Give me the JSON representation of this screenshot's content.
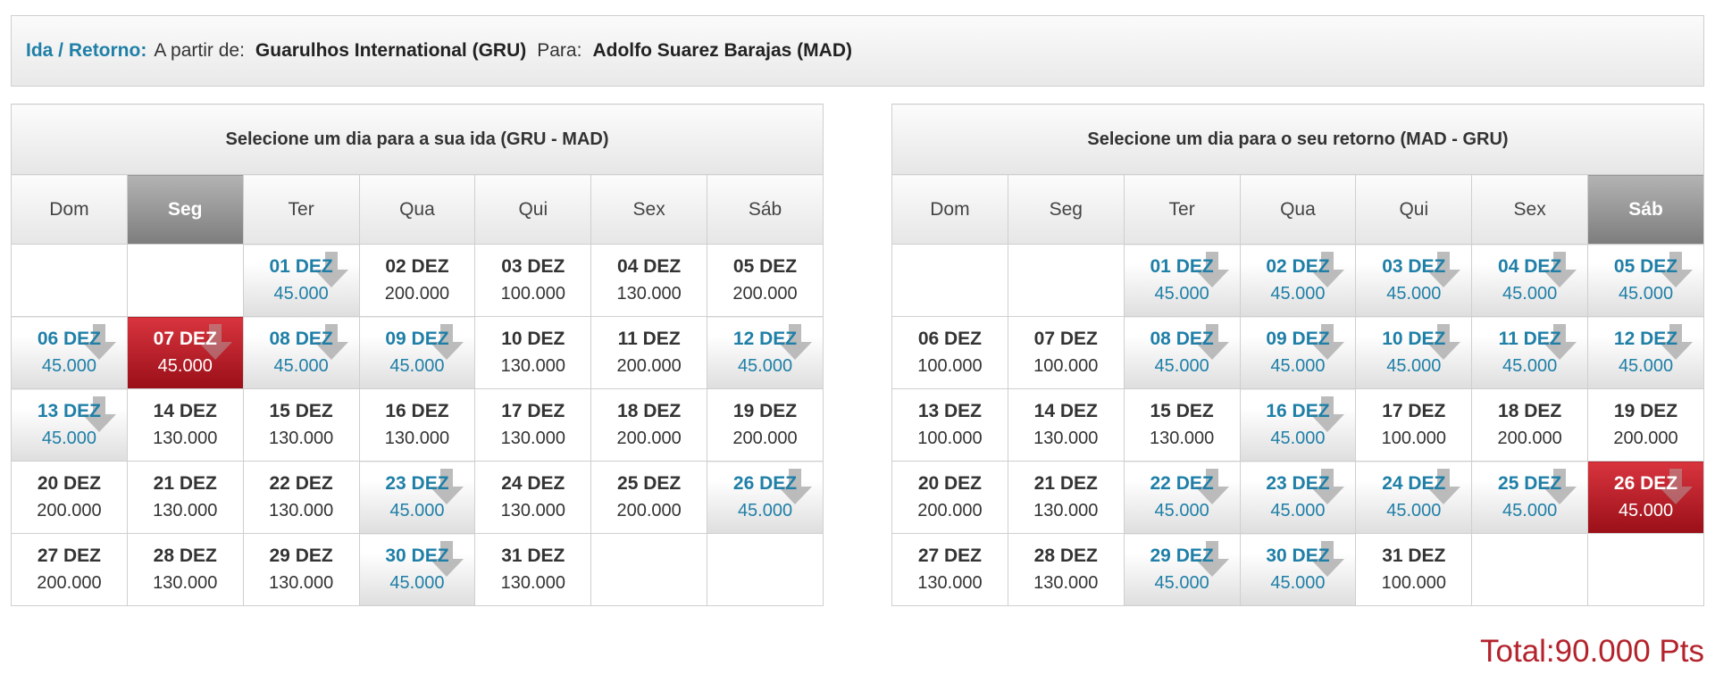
{
  "header": {
    "label": "Ida / Retorno:",
    "from_label": "A partir de:",
    "from": "Guarulhos International (GRU)",
    "to_label": "Para:",
    "to": "Adolfo Suarez Barajas (MAD)"
  },
  "weekdays": [
    "Dom",
    "Seg",
    "Ter",
    "Qua",
    "Qui",
    "Sex",
    "Sáb"
  ],
  "colors": {
    "accent": "#1f7fa7",
    "selected": "#b3232c",
    "total": "#b3232c"
  },
  "icons": {
    "promo": "chevron-down-arrow-icon"
  },
  "outbound": {
    "title": "Selecione um dia para a sua ida (GRU - MAD)",
    "active_weekday": 1,
    "weeks": [
      [
        null,
        null,
        {
          "date": "01 DEZ",
          "price": "45.000",
          "promo": true
        },
        {
          "date": "02 DEZ",
          "price": "200.000"
        },
        {
          "date": "03 DEZ",
          "price": "100.000"
        },
        {
          "date": "04 DEZ",
          "price": "130.000"
        },
        {
          "date": "05 DEZ",
          "price": "200.000"
        }
      ],
      [
        {
          "date": "06 DEZ",
          "price": "45.000",
          "promo": true
        },
        {
          "date": "07 DEZ",
          "price": "45.000",
          "promo": true,
          "selected": true
        },
        {
          "date": "08 DEZ",
          "price": "45.000",
          "promo": true
        },
        {
          "date": "09 DEZ",
          "price": "45.000",
          "promo": true
        },
        {
          "date": "10 DEZ",
          "price": "130.000"
        },
        {
          "date": "11 DEZ",
          "price": "200.000"
        },
        {
          "date": "12 DEZ",
          "price": "45.000",
          "promo": true
        }
      ],
      [
        {
          "date": "13 DEZ",
          "price": "45.000",
          "promo": true
        },
        {
          "date": "14 DEZ",
          "price": "130.000"
        },
        {
          "date": "15 DEZ",
          "price": "130.000"
        },
        {
          "date": "16 DEZ",
          "price": "130.000"
        },
        {
          "date": "17 DEZ",
          "price": "130.000"
        },
        {
          "date": "18 DEZ",
          "price": "200.000"
        },
        {
          "date": "19 DEZ",
          "price": "200.000"
        }
      ],
      [
        {
          "date": "20 DEZ",
          "price": "200.000"
        },
        {
          "date": "21 DEZ",
          "price": "130.000"
        },
        {
          "date": "22 DEZ",
          "price": "130.000"
        },
        {
          "date": "23 DEZ",
          "price": "45.000",
          "promo": true
        },
        {
          "date": "24 DEZ",
          "price": "130.000"
        },
        {
          "date": "25 DEZ",
          "price": "200.000"
        },
        {
          "date": "26 DEZ",
          "price": "45.000",
          "promo": true
        }
      ],
      [
        {
          "date": "27 DEZ",
          "price": "200.000"
        },
        {
          "date": "28 DEZ",
          "price": "130.000"
        },
        {
          "date": "29 DEZ",
          "price": "130.000"
        },
        {
          "date": "30 DEZ",
          "price": "45.000",
          "promo": true
        },
        {
          "date": "31 DEZ",
          "price": "130.000"
        },
        null,
        null
      ]
    ]
  },
  "return": {
    "title": "Selecione um dia para o seu retorno (MAD - GRU)",
    "active_weekday": 6,
    "weeks": [
      [
        null,
        null,
        {
          "date": "01 DEZ",
          "price": "45.000",
          "promo": true
        },
        {
          "date": "02 DEZ",
          "price": "45.000",
          "promo": true
        },
        {
          "date": "03 DEZ",
          "price": "45.000",
          "promo": true
        },
        {
          "date": "04 DEZ",
          "price": "45.000",
          "promo": true
        },
        {
          "date": "05 DEZ",
          "price": "45.000",
          "promo": true
        }
      ],
      [
        {
          "date": "06 DEZ",
          "price": "100.000"
        },
        {
          "date": "07 DEZ",
          "price": "100.000"
        },
        {
          "date": "08 DEZ",
          "price": "45.000",
          "promo": true
        },
        {
          "date": "09 DEZ",
          "price": "45.000",
          "promo": true
        },
        {
          "date": "10 DEZ",
          "price": "45.000",
          "promo": true
        },
        {
          "date": "11 DEZ",
          "price": "45.000",
          "promo": true
        },
        {
          "date": "12 DEZ",
          "price": "45.000",
          "promo": true
        }
      ],
      [
        {
          "date": "13 DEZ",
          "price": "100.000"
        },
        {
          "date": "14 DEZ",
          "price": "130.000"
        },
        {
          "date": "15 DEZ",
          "price": "130.000"
        },
        {
          "date": "16 DEZ",
          "price": "45.000",
          "promo": true
        },
        {
          "date": "17 DEZ",
          "price": "100.000"
        },
        {
          "date": "18 DEZ",
          "price": "200.000"
        },
        {
          "date": "19 DEZ",
          "price": "200.000"
        }
      ],
      [
        {
          "date": "20 DEZ",
          "price": "200.000"
        },
        {
          "date": "21 DEZ",
          "price": "130.000"
        },
        {
          "date": "22 DEZ",
          "price": "45.000",
          "promo": true
        },
        {
          "date": "23 DEZ",
          "price": "45.000",
          "promo": true
        },
        {
          "date": "24 DEZ",
          "price": "45.000",
          "promo": true
        },
        {
          "date": "25 DEZ",
          "price": "45.000",
          "promo": true
        },
        {
          "date": "26 DEZ",
          "price": "45.000",
          "promo": true,
          "selected": true
        }
      ],
      [
        {
          "date": "27 DEZ",
          "price": "130.000"
        },
        {
          "date": "28 DEZ",
          "price": "130.000"
        },
        {
          "date": "29 DEZ",
          "price": "45.000",
          "promo": true
        },
        {
          "date": "30 DEZ",
          "price": "45.000",
          "promo": true
        },
        {
          "date": "31 DEZ",
          "price": "100.000"
        },
        null,
        null
      ]
    ]
  },
  "total": {
    "text": "Total:90.000 Pts"
  }
}
